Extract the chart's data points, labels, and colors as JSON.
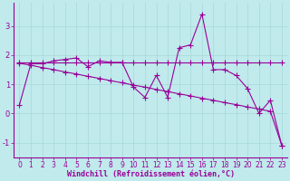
{
  "title": "",
  "xlabel": "Windchill (Refroidissement éolien,°C)",
  "ylabel": "",
  "background_color": "#c0eaec",
  "line_color": "#990099",
  "x_values": [
    0,
    1,
    2,
    3,
    4,
    5,
    6,
    7,
    8,
    9,
    10,
    11,
    12,
    13,
    14,
    15,
    16,
    17,
    18,
    19,
    20,
    21,
    22,
    23
  ],
  "y_main": [
    0.3,
    1.7,
    1.7,
    1.8,
    1.85,
    1.9,
    1.6,
    1.8,
    1.75,
    1.75,
    0.9,
    0.55,
    1.3,
    0.55,
    2.25,
    2.35,
    3.4,
    1.5,
    1.5,
    1.3,
    0.85,
    0.0,
    0.45,
    -1.1
  ],
  "y_flat": [
    1.75,
    1.75,
    1.75,
    1.75,
    1.75,
    1.75,
    1.75,
    1.75,
    1.75,
    1.75,
    1.75,
    1.75,
    1.75,
    1.75,
    1.75,
    1.75,
    1.75,
    1.75,
    1.75,
    1.75,
    1.75,
    1.75,
    1.75,
    1.75
  ],
  "y_linear": [
    1.72,
    1.65,
    1.57,
    1.5,
    1.42,
    1.35,
    1.27,
    1.2,
    1.12,
    1.05,
    0.97,
    0.9,
    0.82,
    0.75,
    0.67,
    0.6,
    0.52,
    0.45,
    0.37,
    0.3,
    0.22,
    0.15,
    0.07,
    -1.1
  ],
  "ylim": [
    -1.5,
    3.8
  ],
  "xlim": [
    -0.5,
    23.5
  ],
  "yticks": [
    -1,
    0,
    1,
    2,
    3
  ],
  "xticks": [
    0,
    1,
    2,
    3,
    4,
    5,
    6,
    7,
    8,
    9,
    10,
    11,
    12,
    13,
    14,
    15,
    16,
    17,
    18,
    19,
    20,
    21,
    22,
    23
  ],
  "grid_color": "#a8d8d8",
  "marker": "+",
  "markersize": 4,
  "linewidth": 0.8,
  "label_fontsize": 6.0,
  "tick_fontsize": 5.5,
  "axis_color": "#990099",
  "figwidth": 3.2,
  "figheight": 2.0
}
